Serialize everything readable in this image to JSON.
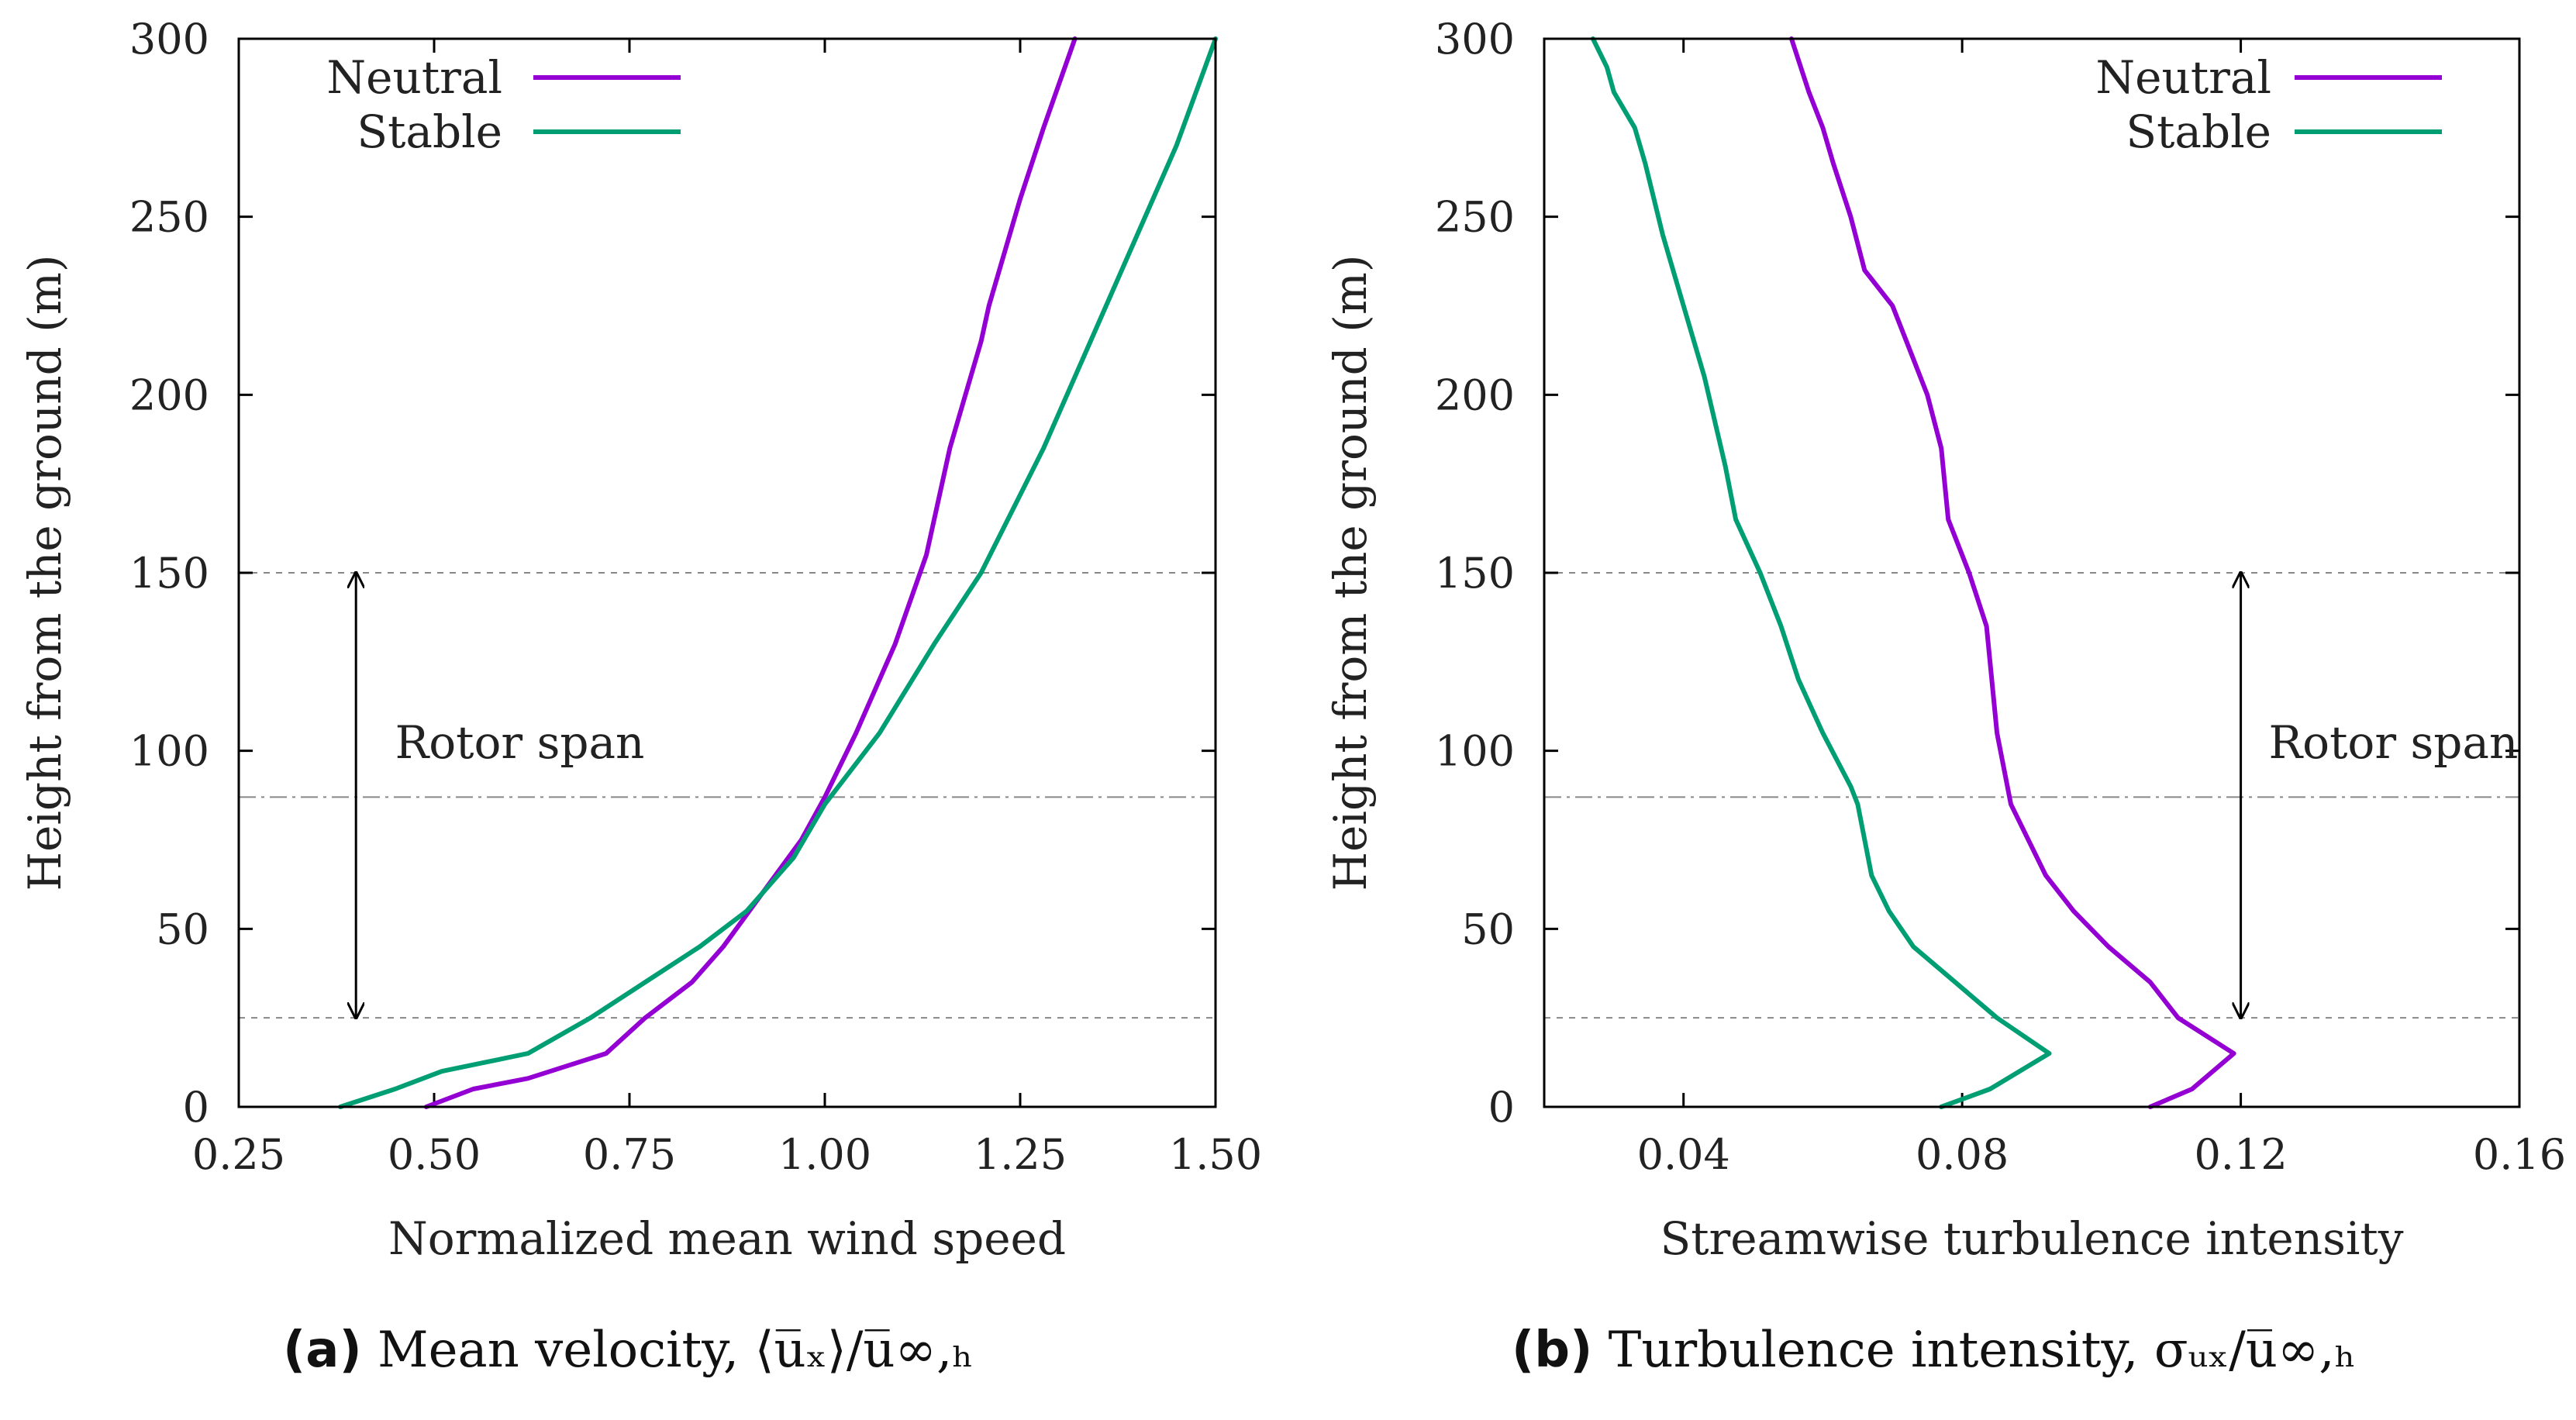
{
  "captions": {
    "a": {
      "tag": "(a)",
      "text": "Mean velocity, ⟨u̅ₓ⟩/u̅∞,ₕ"
    },
    "b": {
      "tag": "(b)",
      "text": "Turbulence intensity, σᵤₓ/u̅∞,ₕ"
    }
  },
  "colors": {
    "neutral": "#9400d3",
    "stable": "#009e73",
    "axis": "#000000",
    "ref_line": "#888888"
  },
  "chart_data": [
    {
      "id": "a",
      "type": "line",
      "xlabel": "Normalized mean wind speed",
      "ylabel": "Height from the ground (m)",
      "xlim": [
        0.25,
        1.5
      ],
      "ylim": [
        0,
        300
      ],
      "xticks": [
        0.25,
        0.5,
        0.75,
        1.0,
        1.25,
        1.5
      ],
      "xtick_labels": [
        "0.25",
        "0.50",
        "0.75",
        "1.00",
        "1.25",
        "1.50"
      ],
      "yticks": [
        0,
        50,
        100,
        150,
        200,
        250,
        300
      ],
      "ytick_labels": [
        "0",
        "50",
        "100",
        "150",
        "200",
        "250",
        "300"
      ],
      "legend": {
        "position": "top-left",
        "entries": [
          "Neutral",
          "Stable"
        ]
      },
      "series": [
        {
          "name": "Neutral",
          "color_key": "neutral",
          "x": [
            0.49,
            0.55,
            0.62,
            0.72,
            0.77,
            0.83,
            0.87,
            0.92,
            0.97,
            1.0,
            1.04,
            1.09,
            1.13,
            1.16,
            1.18,
            1.2,
            1.21,
            1.25,
            1.28,
            1.32
          ],
          "y": [
            0,
            5,
            8,
            15,
            25,
            35,
            45,
            60,
            75,
            87,
            105,
            130,
            155,
            185,
            200,
            215,
            225,
            255,
            275,
            300
          ]
        },
        {
          "name": "Stable",
          "color_key": "stable",
          "x": [
            0.38,
            0.45,
            0.51,
            0.62,
            0.7,
            0.77,
            0.84,
            0.9,
            0.96,
            1.0,
            1.07,
            1.14,
            1.2,
            1.28,
            1.34,
            1.4,
            1.45,
            1.5
          ],
          "y": [
            0,
            5,
            10,
            15,
            25,
            35,
            45,
            55,
            70,
            85,
            105,
            130,
            150,
            185,
            215,
            245,
            270,
            300
          ]
        }
      ],
      "reference_lines": {
        "dashed_heights": [
          25,
          150
        ],
        "dashdot_height": 87
      },
      "annotation": {
        "text": "Rotor span",
        "arrow_x": 0.4,
        "arrow_from": 25,
        "arrow_to": 150,
        "text_x": 0.45,
        "text_y": 98
      }
    },
    {
      "id": "b",
      "type": "line",
      "xlabel": "Streamwise turbulence intensity",
      "ylabel": "Height from the ground (m)",
      "xlim": [
        0.02,
        0.16
      ],
      "ylim": [
        0,
        300
      ],
      "xticks": [
        0.04,
        0.08,
        0.12,
        0.16
      ],
      "xtick_labels": [
        "0.04",
        "0.08",
        "0.12",
        "0.16"
      ],
      "yticks": [
        0,
        50,
        100,
        150,
        200,
        250,
        300
      ],
      "ytick_labels": [
        "0",
        "50",
        "100",
        "150",
        "200",
        "250",
        "300"
      ],
      "legend": {
        "position": "top-right",
        "entries": [
          "Neutral",
          "Stable"
        ]
      },
      "series": [
        {
          "name": "Neutral",
          "color_key": "neutral",
          "x": [
            0.107,
            0.113,
            0.119,
            0.111,
            0.107,
            0.101,
            0.096,
            0.092,
            0.087,
            0.085,
            0.084,
            0.0835,
            0.081,
            0.078,
            0.077,
            0.075,
            0.072,
            0.07,
            0.066,
            0.064,
            0.0615,
            0.06,
            0.058,
            0.0555
          ],
          "y": [
            0,
            5,
            15,
            25,
            35,
            45,
            55,
            65,
            85,
            105,
            125,
            135,
            150,
            165,
            185,
            200,
            215,
            225,
            235,
            250,
            265,
            275,
            285,
            300
          ]
        },
        {
          "name": "Stable",
          "color_key": "stable",
          "x": [
            0.077,
            0.084,
            0.0925,
            0.085,
            0.079,
            0.073,
            0.0695,
            0.067,
            0.065,
            0.064,
            0.06,
            0.0565,
            0.054,
            0.051,
            0.0475,
            0.046,
            0.043,
            0.04,
            0.037,
            0.0345,
            0.033,
            0.03,
            0.029,
            0.027
          ],
          "y": [
            0,
            5,
            15,
            25,
            35,
            45,
            55,
            65,
            85,
            90,
            105,
            120,
            135,
            150,
            165,
            180,
            205,
            225,
            245,
            265,
            275,
            285,
            292,
            300
          ]
        }
      ],
      "reference_lines": {
        "dashed_heights": [
          25,
          150
        ],
        "dashdot_height": 87
      },
      "annotation": {
        "text": "Rotor span",
        "arrow_x": 0.12,
        "arrow_from": 25,
        "arrow_to": 150,
        "text_x": 0.124,
        "text_y": 98
      }
    }
  ]
}
